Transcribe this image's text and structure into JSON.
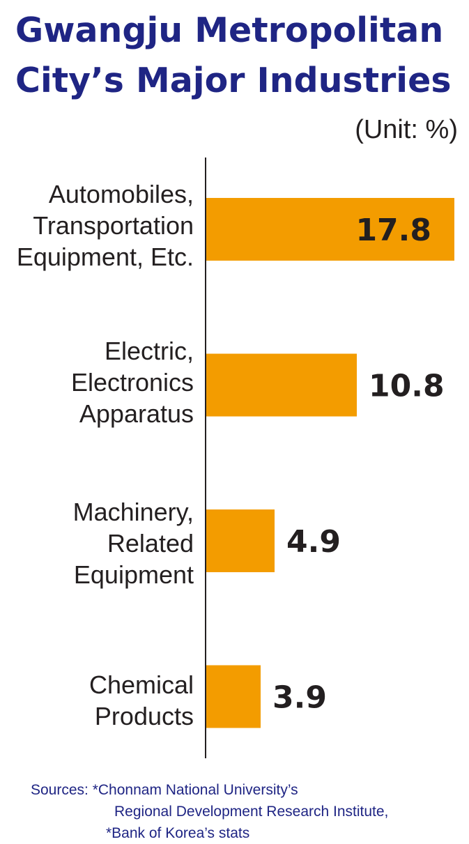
{
  "title_lines": [
    "Gwangju Metropolitan",
    "City’s Major Industries"
  ],
  "unit": "(Unit: %)",
  "colors": {
    "bar": "#f39c00",
    "title": "#1f2584",
    "text": "#231f20",
    "axis": "#231f20"
  },
  "chart_data": {
    "type": "bar",
    "orientation": "horizontal",
    "title": "Gwangju Metropolitan City’s Major Industries",
    "unit": "%",
    "categories": [
      [
        "Automobiles,",
        "Transportation",
        "Equipment, Etc."
      ],
      [
        "Electric,",
        "Electronics",
        "Apparatus"
      ],
      [
        "Machinery,",
        "Related",
        "Equipment"
      ],
      [
        "Chemical",
        "Products"
      ]
    ],
    "values": [
      17.8,
      10.8,
      4.9,
      3.9
    ],
    "value_labels": [
      "17.8",
      "10.8",
      "4.9",
      "3.9"
    ],
    "xlim": [
      0,
      17.8
    ],
    "grid": false
  },
  "sources": {
    "lines": [
      "Sources: *Chonnam National University’s",
      "Regional Development Research Institute,",
      "*Bank of Korea’s stats"
    ]
  }
}
